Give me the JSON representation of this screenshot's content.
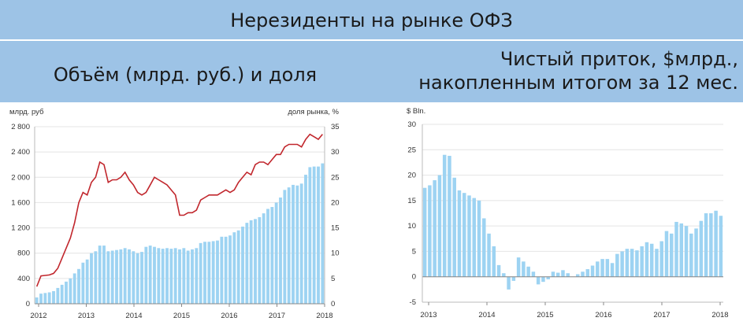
{
  "header": {
    "title": "Нерезиденты на рынке ОФЗ",
    "left_subtitle": "Объём (млрд. руб.) и доля",
    "right_subtitle_line1": "Чистый приток, $млрд.,",
    "right_subtitle_line2": "накопленным итогом за 12 мес."
  },
  "colors": {
    "bar": "#9dd3f2",
    "line": "#c1272d",
    "header": "#9dc3e6",
    "grid": "#e4e4e4"
  },
  "chart_data": [
    {
      "type": "bar+line",
      "ylabel": "млрд. руб",
      "y2label": "доля рынка, %",
      "ylim": [
        0,
        2800
      ],
      "y2lim": [
        0,
        35
      ],
      "yticks": [
        "0",
        "400",
        "800",
        "1 200",
        "1 600",
        "2 000",
        "2 400",
        "2 800"
      ],
      "yticks_values": [
        0,
        400,
        800,
        1200,
        1600,
        2000,
        2400,
        2800
      ],
      "y2ticks": [
        0,
        5,
        10,
        15,
        20,
        25,
        30,
        35
      ],
      "xticks": [
        "2012",
        "2013",
        "2014",
        "2015",
        "2016",
        "2017",
        "2018"
      ],
      "grid": true,
      "series": [
        {
          "type": "bar",
          "values": [
            100,
            160,
            170,
            180,
            200,
            250,
            300,
            350,
            400,
            480,
            550,
            650,
            700,
            800,
            830,
            920,
            920,
            830,
            840,
            850,
            860,
            880,
            860,
            830,
            800,
            820,
            900,
            920,
            900,
            880,
            870,
            880,
            870,
            880,
            860,
            880,
            840,
            860,
            880,
            960,
            980,
            980,
            990,
            1000,
            1060,
            1060,
            1080,
            1130,
            1160,
            1220,
            1280,
            1320,
            1340,
            1370,
            1430,
            1500,
            1530,
            1600,
            1680,
            1800,
            1840,
            1880,
            1870,
            1900,
            2040,
            2160,
            2170,
            2170,
            2220
          ]
        },
        {
          "type": "line",
          "values": [
            3.4,
            5.5,
            5.6,
            5.7,
            6.0,
            7.0,
            9.0,
            11.0,
            13.0,
            16.0,
            20.0,
            22.0,
            21.5,
            24.0,
            25.0,
            28.0,
            27.5,
            24.0,
            24.5,
            24.5,
            25.0,
            26.0,
            24.5,
            23.5,
            22.0,
            21.5,
            22.0,
            23.5,
            25.0,
            24.5,
            24.0,
            23.5,
            22.5,
            21.5,
            17.5,
            17.5,
            18.0,
            18.0,
            18.5,
            20.5,
            21.0,
            21.5,
            21.5,
            21.5,
            22.0,
            22.5,
            22.0,
            22.5,
            24.0,
            25.0,
            26.0,
            25.5,
            27.5,
            28.0,
            28.0,
            27.5,
            28.5,
            29.5,
            29.5,
            31.0,
            31.5,
            31.5,
            31.5,
            31.0,
            32.5,
            33.5,
            33.0,
            32.5,
            33.5
          ]
        }
      ]
    },
    {
      "type": "bar",
      "ylabel": "$ Bln.",
      "ylim": [
        -5,
        30
      ],
      "yticks": [
        -5,
        0,
        5,
        10,
        15,
        20,
        25,
        30
      ],
      "xticks": [
        "2013",
        "2014",
        "2015",
        "2016",
        "2017",
        "2018"
      ],
      "grid": true,
      "values": [
        17.5,
        18,
        19,
        20,
        24,
        23.8,
        19.5,
        17,
        16.5,
        16,
        15.5,
        15,
        11.5,
        8.5,
        6,
        2.3,
        0.7,
        -2.5,
        -0.8,
        3.8,
        3,
        2,
        1,
        -1.5,
        -1,
        -0.5,
        1,
        0.8,
        1.3,
        0.7,
        0,
        0.5,
        1,
        1.5,
        2.2,
        3,
        3.5,
        3.5,
        2.7,
        4.5,
        5,
        5.5,
        5.5,
        5.2,
        6,
        6.8,
        6.5,
        5.5,
        7,
        9,
        8.5,
        10.8,
        10.5,
        10,
        8.5,
        9.5,
        11,
        12.5,
        12.5,
        13,
        12
      ]
    }
  ]
}
